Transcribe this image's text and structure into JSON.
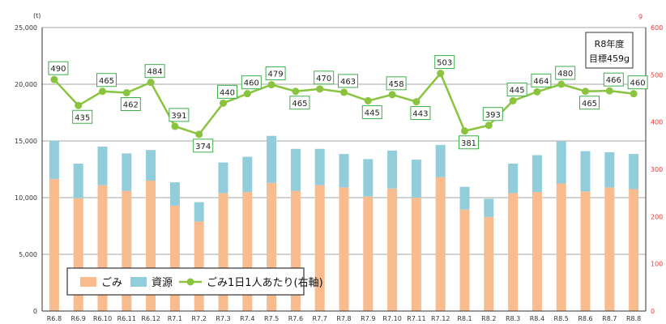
{
  "chart_data": {
    "type": "bar+line",
    "categories": [
      "R6.8",
      "R6.9",
      "R6.10",
      "R6.11",
      "R6.12",
      "R7.1",
      "R7.2",
      "R7.3",
      "R7.4",
      "R7.5",
      "R7.6",
      "R7.7",
      "R7.8",
      "R7.9",
      "R7.10",
      "R7.11",
      "R7.12",
      "R8.1",
      "R8.2",
      "R8.3",
      "R8.4",
      "R8.5",
      "R8.6",
      "R8.7",
      "R8.8"
    ],
    "series": [
      {
        "name": "ごみ",
        "kind": "bar",
        "color": "#f9bc8f",
        "values": [
          11650,
          9950,
          11100,
          10600,
          11500,
          9300,
          7900,
          10400,
          10500,
          11300,
          10600,
          11100,
          10900,
          10100,
          10800,
          10000,
          11800,
          8950,
          8300,
          10400,
          10500,
          11250,
          10550,
          10900,
          10750
        ]
      },
      {
        "name": "資源",
        "kind": "bar",
        "color": "#92cddc",
        "values": [
          3350,
          3050,
          3400,
          3300,
          2700,
          2050,
          1700,
          2700,
          3100,
          4150,
          3700,
          3200,
          2950,
          3300,
          3350,
          3350,
          2850,
          2000,
          1600,
          2600,
          3250,
          3700,
          3550,
          3100,
          3100
        ]
      },
      {
        "name": "ごみ1日1人あたり(右軸)",
        "kind": "line",
        "axis": "right",
        "color": "#8ac43f",
        "values": [
          490,
          435,
          465,
          462,
          484,
          391,
          374,
          440,
          460,
          479,
          465,
          470,
          463,
          445,
          458,
          443,
          503,
          381,
          393,
          445,
          464,
          480,
          465,
          466,
          460
        ]
      }
    ],
    "y_left": {
      "unit": "(t)",
      "min": 0,
      "max": 25000,
      "ticks": [
        "0",
        "5,000",
        "10,000",
        "15,000",
        "20,000",
        "25,000"
      ]
    },
    "y_right": {
      "unit": "g",
      "min": 0,
      "max": 600,
      "ticks": [
        "0",
        "100",
        "200",
        "300",
        "400",
        "500",
        "600"
      ]
    },
    "grid": "horizontal",
    "legend": {
      "position": "bottom-left",
      "items": [
        "ごみ",
        "資源",
        "ごみ1日1人あたり(右軸)"
      ]
    },
    "annotation": {
      "line1": "R8年度",
      "line2": "目標459g"
    }
  }
}
